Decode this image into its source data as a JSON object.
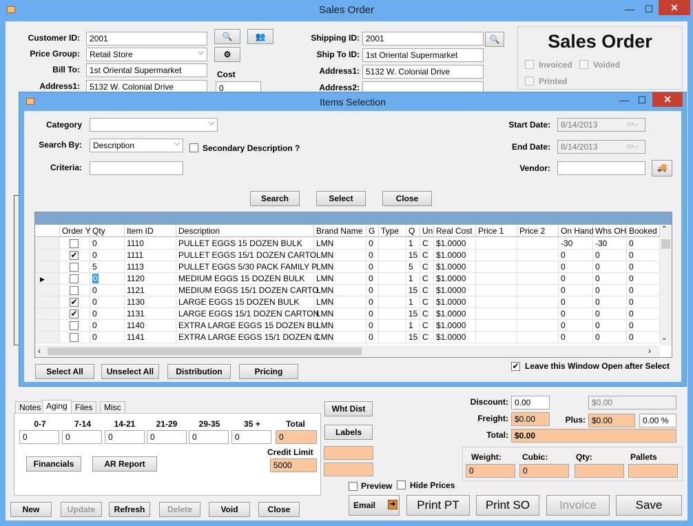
{
  "window": {
    "title": "Sales Order",
    "min": "—",
    "max": "☐",
    "close": "✕"
  },
  "main": {
    "customer_id_label": "Customer ID:",
    "customer_id": "2001",
    "price_group_label": "Price Group:",
    "price_group": "Retail Store",
    "bill_to_label": "Bill To:",
    "bill_to": "1st Oriental Supermarket",
    "address1_label": "Address1:",
    "address1": "5132 W. Colonial Drive",
    "cost_label": "Cost",
    "cost": "0",
    "shipping_id_label": "Shipping ID:",
    "shipping_id": "2001",
    "ship_to_id_label": "Ship To ID:",
    "ship_to": "1st Oriental Supermarket",
    "ship_address1_label": "Address1:",
    "ship_address1": "5132 W. Colonial Drive",
    "ship_address2_label": "Address2:",
    "ship_address2": "",
    "heading": "Sales Order",
    "invoiced": "Invoiced",
    "voided": "Voided",
    "printed": "Printed"
  },
  "dialog": {
    "title": "Items Selection",
    "category_label": "Category",
    "category": "",
    "search_by_label": "Search By:",
    "search_by": "Description",
    "secondary_desc": "Secondary Description ?",
    "criteria_label": "Criteria:",
    "criteria": "",
    "start_date_label": "Start Date:",
    "start_date": "8/14/2013",
    "end_date_label": "End  Date:",
    "end_date": "8/14/2013",
    "vendor_label": "Vendor:",
    "vendor": "",
    "search_btn": "Search",
    "select_btn": "Select",
    "close_btn": "Close",
    "columns": [
      "Order Y",
      "Qty",
      "Item ID",
      "Description",
      "Brand Name",
      "G",
      "Type",
      "Q",
      "Un",
      "Real Cost",
      "Price 1",
      "Price 2",
      "On Hand",
      "Whs OH",
      "Booked"
    ],
    "rows": [
      {
        "checked": false,
        "qty": "0",
        "item": "1110",
        "desc": "PULLET EGGS 15 DOZEN BULK",
        "brand": "LMN",
        "g": "0",
        "type": "",
        "q": "1",
        "un": "C",
        "cost": "$1.0000",
        "p1": "",
        "p2": "",
        "onhand": "-30",
        "whs": "-30",
        "booked": "0"
      },
      {
        "checked": true,
        "qty": "0",
        "item": "1111",
        "desc": "PULLET EGGS 15/1 DOZEN CARTO",
        "brand": "LMN",
        "g": "0",
        "type": "",
        "q": "15",
        "un": "C",
        "cost": "$1.0000",
        "p1": "",
        "p2": "",
        "onhand": "0",
        "whs": "0",
        "booked": "0"
      },
      {
        "checked": false,
        "qty": "5",
        "item": "1113",
        "desc": "PULLET EGGS 5/30 PACK FAMILY P",
        "brand": "LMN",
        "g": "0",
        "type": "",
        "q": "5",
        "un": "C",
        "cost": "$1.0000",
        "p1": "",
        "p2": "",
        "onhand": "0",
        "whs": "0",
        "booked": "0"
      },
      {
        "checked": false,
        "qty": "0",
        "item": "1120",
        "desc": "MEDIUM EGGS 15 DOZEN BULK",
        "brand": "LMN",
        "g": "0",
        "type": "",
        "q": "1",
        "un": "C",
        "cost": "$1.0000",
        "p1": "",
        "p2": "",
        "onhand": "0",
        "whs": "0",
        "booked": "0"
      },
      {
        "checked": false,
        "qty": "0",
        "item": "1121",
        "desc": "MEDIUM EGGS 15/1 DOZEN CARTO",
        "brand": "LMN",
        "g": "0",
        "type": "",
        "q": "15",
        "un": "C",
        "cost": "$1.0000",
        "p1": "",
        "p2": "",
        "onhand": "0",
        "whs": "0",
        "booked": "0"
      },
      {
        "checked": true,
        "qty": "0",
        "item": "1130",
        "desc": "LARGE EGGS 15 DOZEN BULK",
        "brand": "LMN",
        "g": "0",
        "type": "",
        "q": "1",
        "un": "C",
        "cost": "$1.0000",
        "p1": "",
        "p2": "",
        "onhand": "0",
        "whs": "0",
        "booked": "0"
      },
      {
        "checked": true,
        "qty": "0",
        "item": "1131",
        "desc": "LARGE EGGS 15/1 DOZEN CARTON",
        "brand": "LMN",
        "g": "0",
        "type": "",
        "q": "15",
        "un": "C",
        "cost": "$1.0000",
        "p1": "",
        "p2": "",
        "onhand": "0",
        "whs": "0",
        "booked": "0"
      },
      {
        "checked": false,
        "qty": "0",
        "item": "1140",
        "desc": "EXTRA LARGE EGGS 15 DOZEN BU",
        "brand": "LMN",
        "g": "0",
        "type": "",
        "q": "1",
        "un": "C",
        "cost": "$1.0000",
        "p1": "",
        "p2": "",
        "onhand": "0",
        "whs": "0",
        "booked": "0"
      },
      {
        "checked": false,
        "qty": "0",
        "item": "1141",
        "desc": "EXTRA LARGE EGGS 15/1 DOZEN C",
        "brand": "LMN",
        "g": "0",
        "type": "",
        "q": "15",
        "un": "C",
        "cost": "$1.0000",
        "p1": "",
        "p2": "",
        "onhand": "0",
        "whs": "0",
        "booked": "0"
      }
    ],
    "current_row_marker": "▶",
    "select_all": "Select  All",
    "unselect_all": "Unselect  All",
    "distribution": "Distribution",
    "pricing": "Pricing",
    "leave_open": "Leave this Window Open after Select"
  },
  "bottom": {
    "tabs": [
      "Notes",
      "Aging",
      "Files",
      "Misc"
    ],
    "aging_headers": [
      "0-7",
      "7-14",
      "14-21",
      "21-29",
      "29-35",
      "35 +",
      "Total"
    ],
    "aging_values": [
      "0",
      "0",
      "0",
      "0",
      "0",
      "0",
      "0"
    ],
    "financials": "Financials",
    "ar_report": "AR Report",
    "credit_limit_label": "Credit Limit",
    "credit_limit": "5000",
    "wht_dist": "Wht Dist",
    "labels": "Labels",
    "preview": "Preview",
    "hide_prices": "Hide Prices",
    "discount_label": "Discount:",
    "discount": "0.00",
    "discount_amt": "$0.00",
    "freight_label": "Freight:",
    "freight": "$0.00",
    "plus_label": "Plus:",
    "plus": "$0.00",
    "plus_pct": "0.00 %",
    "total_label": "Total:",
    "total": "$0.00",
    "weight_label": "Weight:",
    "weight": "0",
    "cubic_label": "Cubic:",
    "cubic": "0",
    "qty_label": "Qty:",
    "qty": "",
    "pallets_label": "Pallets",
    "pallets": "",
    "btn_new": "New",
    "btn_update": "Update",
    "btn_refresh": "Refresh",
    "btn_delete": "Delete",
    "btn_void": "Void",
    "btn_close": "Close",
    "btn_email": "Email",
    "btn_print_pt": "Print PT",
    "btn_print_so": "Print SO",
    "btn_invoice": "Invoice",
    "btn_save": "Save"
  },
  "colors": {
    "title_bar": "#6aaef0",
    "highlight": "#fbc79c",
    "close": "#c7402f"
  }
}
